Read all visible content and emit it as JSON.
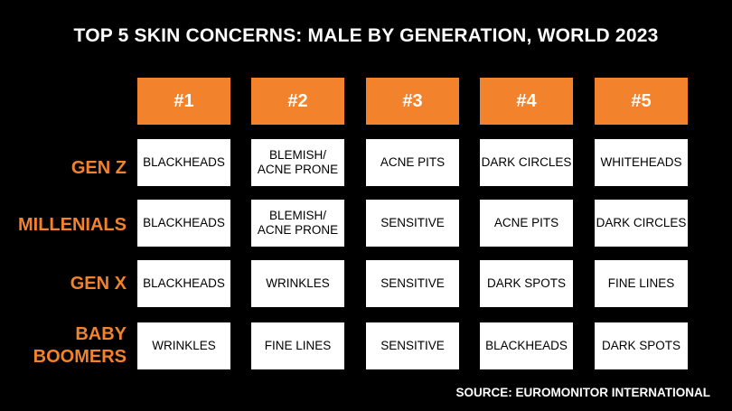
{
  "colors": {
    "background": "#000000",
    "accent": "#f2822c",
    "cell_background": "#ffffff",
    "text_light": "#ffffff",
    "text_dark": "#000000"
  },
  "chart_data": {
    "type": "table",
    "title": "TOP 5 SKIN CONCERNS: MALE BY GENERATION, WORLD 2023",
    "columns": [
      "#1",
      "#2",
      "#3",
      "#4",
      "#5"
    ],
    "rows": [
      {
        "label": "GEN Z",
        "values": [
          "BLACKHEADS",
          "BLEMISH/\nACNE PRONE",
          "ACNE PITS",
          "DARK CIRCLES",
          "WHITEHEADS"
        ]
      },
      {
        "label": "MILLENIALS",
        "values": [
          "BLACKHEADS",
          "BLEMISH/\nACNE PRONE",
          "SENSITIVE",
          "ACNE PITS",
          "DARK CIRCLES"
        ]
      },
      {
        "label": "GEN X",
        "values": [
          "BLACKHEADS",
          "WRINKLES",
          "SENSITIVE",
          "DARK SPOTS",
          "FINE LINES"
        ]
      },
      {
        "label": "BABY\nBOOMERS",
        "values": [
          "WRINKLES",
          "FINE LINES",
          "SENSITIVE",
          "BLACKHEADS",
          "DARK SPOTS"
        ]
      }
    ],
    "source": "SOURCE: EUROMONITOR INTERNATIONAL"
  }
}
